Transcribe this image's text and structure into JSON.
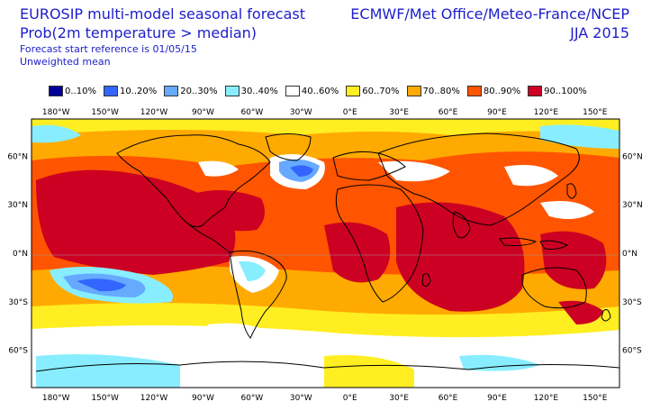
{
  "header": {
    "title": "EUROSIP multi-model seasonal forecast",
    "subtitle": "Prob(2m temperature > median)",
    "reference": "Forecast start reference is 01/05/15",
    "method": "Unweighted mean",
    "centres": "ECMWF/Met Office/Meteo-France/NCEP",
    "season": "JJA 2015"
  },
  "legend": [
    {
      "label": "0..10%",
      "color": "#000099"
    },
    {
      "label": "10..20%",
      "color": "#3366ff"
    },
    {
      "label": "20..30%",
      "color": "#66aaff"
    },
    {
      "label": "30..40%",
      "color": "#88eeff"
    },
    {
      "label": "40..60%",
      "color": "#ffffff"
    },
    {
      "label": "60..70%",
      "color": "#ffee22"
    },
    {
      "label": "70..80%",
      "color": "#ffaa00"
    },
    {
      "label": "80..90%",
      "color": "#ff5500"
    },
    {
      "label": "90..100%",
      "color": "#cc0022"
    }
  ],
  "axes": {
    "longitudes": [
      "180°W",
      "150°W",
      "120°W",
      "90°W",
      "60°W",
      "30°W",
      "0°E",
      "30°E",
      "60°E",
      "90°E",
      "120°E",
      "150°E"
    ],
    "latitudes": [
      "60°N",
      "30°N",
      "0°N",
      "30°S",
      "60°S"
    ]
  },
  "map": {
    "ocean_color": "#ff5500",
    "coast_color": "#000000"
  }
}
